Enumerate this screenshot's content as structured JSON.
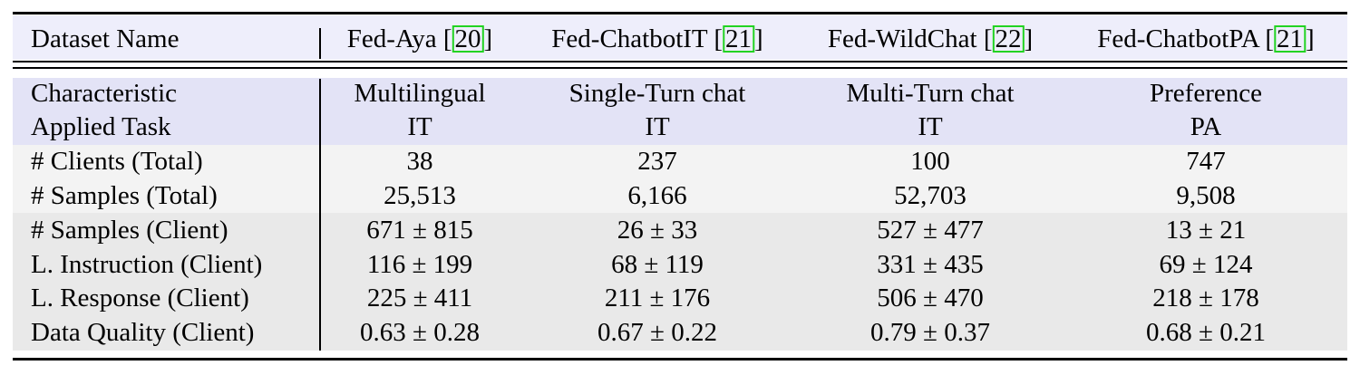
{
  "table": {
    "header": {
      "label": "Dataset Name",
      "datasets": [
        {
          "name": "Fed-Aya",
          "cite": "20"
        },
        {
          "name": "Fed-ChatbotIT",
          "cite": "21"
        },
        {
          "name": "Fed-WildChat",
          "cite": "22"
        },
        {
          "name": "Fed-ChatbotPA",
          "cite": "21"
        }
      ]
    },
    "rows": [
      {
        "label": "Characteristic",
        "values": [
          "Multilingual",
          "Single-Turn chat",
          "Multi-Turn chat",
          "Preference"
        ]
      },
      {
        "label": "Applied Task",
        "values": [
          "IT",
          "IT",
          "IT",
          "PA"
        ]
      },
      {
        "label": "# Clients (Total)",
        "values": [
          "38",
          "237",
          "100",
          "747"
        ]
      },
      {
        "label": "# Samples (Total)",
        "values": [
          "25,513",
          "6,166",
          "52,703",
          "9,508"
        ]
      },
      {
        "label": "# Samples (Client)",
        "values": [
          "671 ± 815",
          "26 ± 33",
          "527 ± 477",
          "13 ± 21"
        ]
      },
      {
        "label": "L. Instruction (Client)",
        "values": [
          "116 ± 199",
          "68 ± 119",
          "331 ± 435",
          "69 ± 124"
        ]
      },
      {
        "label": "L. Response (Client)",
        "values": [
          "225 ± 411",
          "211 ± 176",
          "506 ± 470",
          "218 ± 178"
        ]
      },
      {
        "label": "Data Quality (Client)",
        "values": [
          "0.63 ± 0.28",
          "0.67 ± 0.22",
          "0.79 ± 0.37",
          "0.68 ± 0.21"
        ]
      }
    ]
  },
  "colors": {
    "header_band": "#eeeefb",
    "task_band": "#e3e3f6",
    "totals_band": "#f3f3f3",
    "client_band": "#e9e9e9",
    "citation_box": "#22d322"
  }
}
